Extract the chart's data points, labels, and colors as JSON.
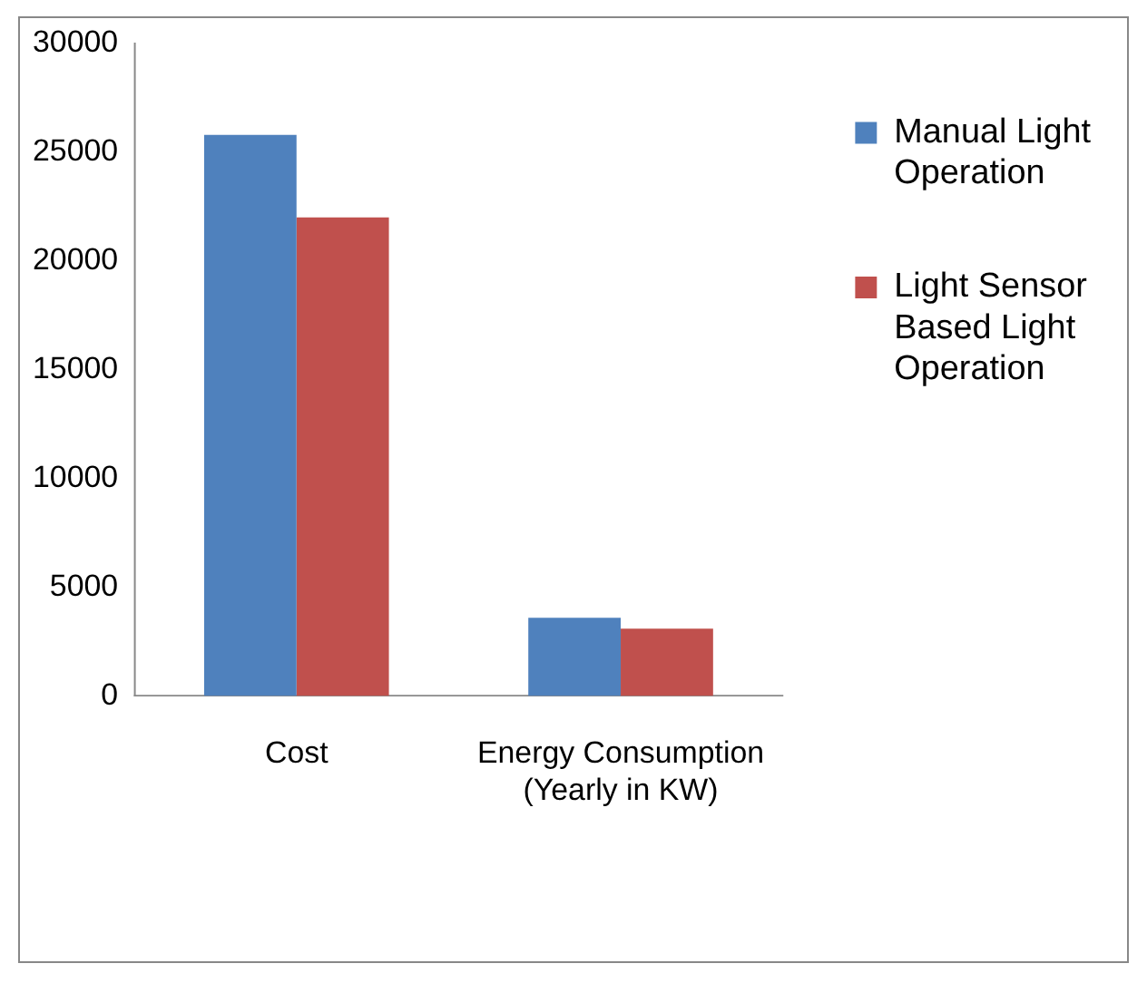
{
  "chart_data": {
    "type": "bar",
    "categories": [
      "Cost",
      "Energy Consumption (Yearly in KW)"
    ],
    "series": [
      {
        "name": "Manual Light Operation",
        "color": "#4f81bd",
        "values": [
          25800,
          3600
        ]
      },
      {
        "name": "Light Sensor Based Light Operation",
        "color": "#c0504d",
        "values": [
          22000,
          3100
        ]
      }
    ],
    "ylim": [
      0,
      30000
    ],
    "yticks": [
      0,
      5000,
      10000,
      15000,
      20000,
      25000,
      30000
    ],
    "grid": false,
    "legend": "right"
  }
}
